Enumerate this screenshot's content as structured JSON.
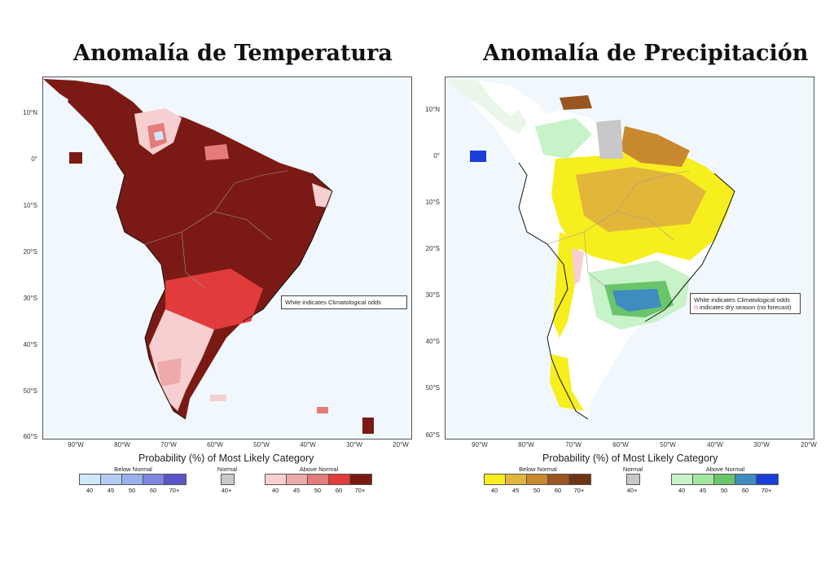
{
  "titles": {
    "temperature": "Anomalía de Temperatura",
    "precipitation": "Anomalía de  Precipitación"
  },
  "axes": {
    "lat_labels": [
      "10°N",
      "0°",
      "10°S",
      "20°S",
      "30°S",
      "40°S",
      "50°S",
      "60°S"
    ],
    "lon_labels": [
      "90°W",
      "80°W",
      "70°W",
      "60°W",
      "50°W",
      "40°W",
      "30°W",
      "20°W"
    ],
    "x_title": "Probability (%) of Most Likely Category"
  },
  "notes": {
    "temperature": "White indicates Climatological odds",
    "precipitation_line1": "White indicates Climatological odds",
    "precipitation_line2": "indicates dry season (no forecast)"
  },
  "legend_temperature": {
    "below_title": "Below Normal",
    "normal_title": "Normal",
    "above_title": "Above Normal",
    "below_labels": [
      "40",
      "45",
      "50",
      "60",
      "70+"
    ],
    "normal_label": "40+",
    "above_labels": [
      "40",
      "45",
      "50",
      "60",
      "70+"
    ],
    "below_colors": [
      "#cfe8fa",
      "#b4ccf4",
      "#9ab0ee",
      "#7f86e0",
      "#5a55c8"
    ],
    "normal_color": "#c8c8c8",
    "above_colors": [
      "#f7cfd0",
      "#eeaaab",
      "#e67b7c",
      "#e23b3b",
      "#7b1a14"
    ]
  },
  "legend_precipitation": {
    "below_title": "Below Normal",
    "normal_title": "Normal",
    "above_title": "Above Normal",
    "below_labels": [
      "40",
      "45",
      "50",
      "60",
      "70+"
    ],
    "normal_label": "40+",
    "above_labels": [
      "40",
      "45",
      "50",
      "60",
      "70+"
    ],
    "below_colors": [
      "#f7ee1e",
      "#e2b63a",
      "#c9892f",
      "#9a5523",
      "#6e3514"
    ],
    "normal_color": "#c8c8c8",
    "above_colors": [
      "#c8f2c8",
      "#a2e6a2",
      "#6ac46a",
      "#3e8cc0",
      "#1a3fd8"
    ]
  },
  "colors": {
    "ocean": "#f1f8fd",
    "land_clim": "#ffffff",
    "temp_main": "#7b1a14",
    "temp_mid": "#e23b3b",
    "temp_light": "#f7cfd0",
    "prec_dry_light": "#f7ee1e",
    "prec_dry_mid": "#e2b63a",
    "prec_dry_dark": "#c9892f",
    "prec_wet_light": "#c8f2c8",
    "prec_wet_mid": "#6ac46a",
    "prec_wet_blue": "#3e8cc0",
    "dry_season_pink": "#f7cfd0"
  }
}
